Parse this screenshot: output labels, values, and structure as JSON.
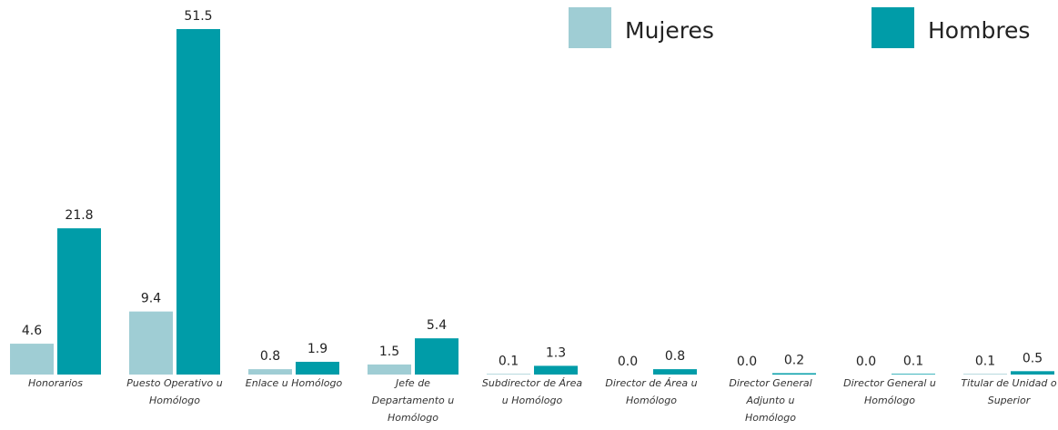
{
  "chart_data": {
    "type": "bar",
    "categories": [
      "Honorarios",
      "Puesto Operativo u Homólogo",
      "Enlace u Homólogo",
      "Jefe de Departamento u Homólogo",
      "Subdirector de Área u Homólogo",
      "Director de Área u Homólogo",
      "Director General Adjunto u Homólogo",
      "Director General u Homólogo",
      "Titular de Unidad o Superior"
    ],
    "series": [
      {
        "name": "Mujeres",
        "color": "#9fcdd4",
        "values": [
          4.6,
          9.4,
          0.8,
          1.5,
          0.1,
          0,
          0,
          0,
          0.1
        ],
        "value_labels": [
          "4.6",
          "9.4",
          "0.8",
          "1.5",
          "0.1",
          "0.0",
          "0.0",
          "0.0",
          "0.1"
        ]
      },
      {
        "name": "Hombres",
        "color": "#009ca8",
        "values": [
          21.8,
          51.5,
          1.9,
          5.4,
          1.3,
          0.8,
          0.2,
          0.1,
          0.5
        ],
        "value_labels": [
          "21.8",
          "51.5",
          "1.9",
          "5.4",
          "1.3",
          "0.8",
          "0.2",
          "0.1",
          "0.5"
        ]
      }
    ]
  }
}
